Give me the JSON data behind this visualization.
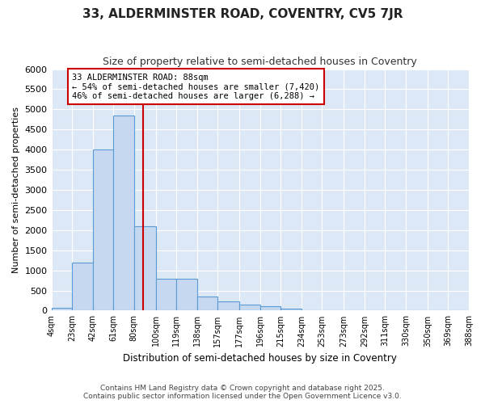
{
  "title": "33, ALDERMINSTER ROAD, COVENTRY, CV5 7JR",
  "subtitle": "Size of property relative to semi-detached houses in Coventry",
  "xlabel": "Distribution of semi-detached houses by size in Coventry",
  "ylabel": "Number of semi-detached properties",
  "footer_line1": "Contains HM Land Registry data © Crown copyright and database right 2025.",
  "footer_line2": "Contains public sector information licensed under the Open Government Licence v3.0.",
  "annotation_title": "33 ALDERMINSTER ROAD: 88sqm",
  "annotation_line1": "← 54% of semi-detached houses are smaller (7,420)",
  "annotation_line2": "46% of semi-detached houses are larger (6,288) →",
  "property_size": 88,
  "bin_labels": [
    "4sqm",
    "23sqm",
    "42sqm",
    "61sqm",
    "80sqm",
    "100sqm",
    "119sqm",
    "138sqm",
    "157sqm",
    "177sqm",
    "196sqm",
    "215sqm",
    "234sqm",
    "253sqm",
    "273sqm",
    "292sqm",
    "311sqm",
    "330sqm",
    "350sqm",
    "369sqm",
    "388sqm"
  ],
  "bin_edges": [
    4,
    23,
    42,
    61,
    80,
    100,
    119,
    138,
    157,
    177,
    196,
    215,
    234,
    253,
    273,
    292,
    311,
    330,
    350,
    369,
    388
  ],
  "bar_heights": [
    75,
    1200,
    4000,
    4850,
    2100,
    800,
    800,
    350,
    225,
    150,
    100,
    50,
    0,
    0,
    0,
    0,
    0,
    0,
    0,
    0
  ],
  "bar_color": "#c5d8f0",
  "bar_edge_color": "#5b9bd5",
  "line_color": "#cc0000",
  "annotation_box_color": "#cc0000",
  "fig_bg_color": "#ffffff",
  "plot_bg_color": "#dce8f5",
  "grid_color": "#ffffff",
  "ylim": [
    0,
    6000
  ],
  "yticks": [
    0,
    500,
    1000,
    1500,
    2000,
    2500,
    3000,
    3500,
    4000,
    4500,
    5000,
    5500,
    6000
  ]
}
